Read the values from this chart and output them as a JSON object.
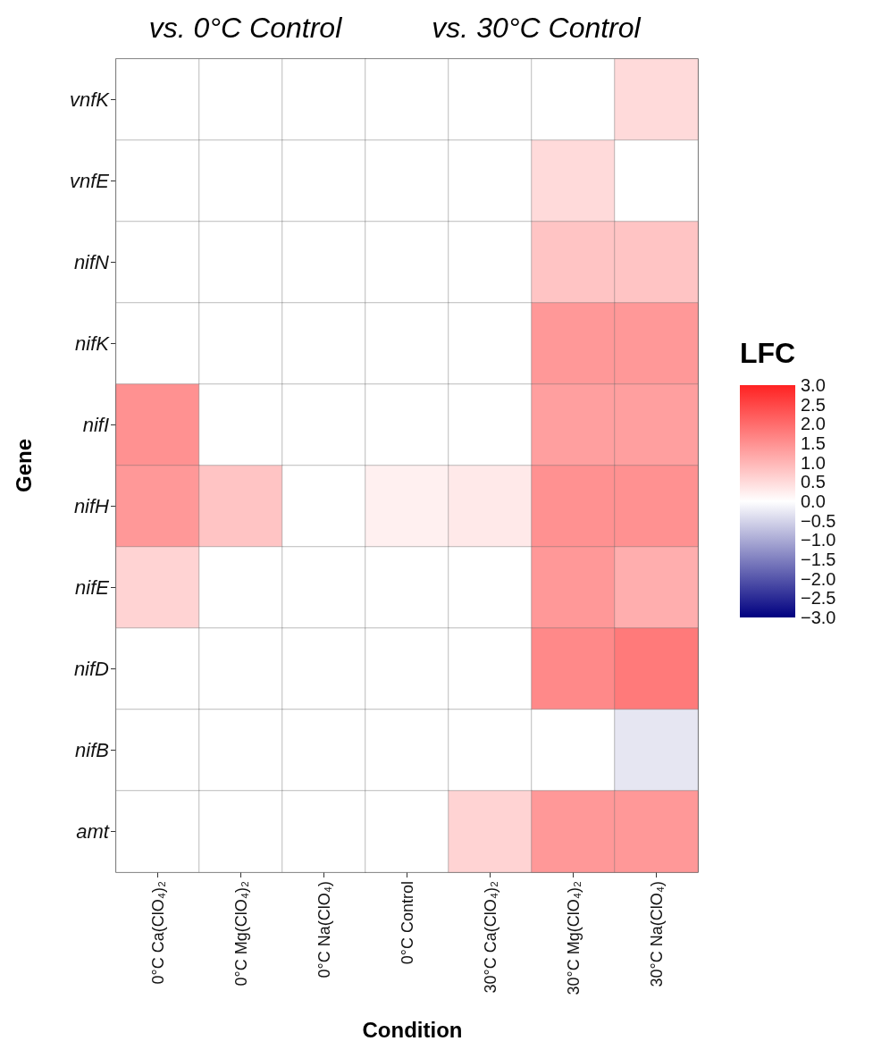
{
  "chart_data": {
    "type": "heatmap",
    "xlabel": "Condition",
    "ylabel": "Gene",
    "clabel": "LFC",
    "clim": [
      -3,
      3
    ],
    "annotations": [
      "vs. 0°C Control",
      "vs. 30°C Control"
    ],
    "cticks": [
      {
        "value": 3,
        "label": "3.0"
      },
      {
        "value": 2.5,
        "label": "2.5"
      },
      {
        "value": 2,
        "label": "2.0"
      },
      {
        "value": 1.5,
        "label": "1.5"
      },
      {
        "value": 1,
        "label": "1.0"
      },
      {
        "value": 0.5,
        "label": "0.5"
      },
      {
        "value": 0,
        "label": "0.0"
      },
      {
        "value": -0.5,
        "label": "−0.5"
      },
      {
        "value": -1,
        "label": "−1.0"
      },
      {
        "value": -1.5,
        "label": "−1.5"
      },
      {
        "value": -2,
        "label": "−2.0"
      },
      {
        "value": -2.5,
        "label": "−2.5"
      },
      {
        "value": -3,
        "label": "−3.0"
      }
    ],
    "categories": [
      "0°C Ca(ClO₄)₂",
      "0°C Mg(ClO₄)₂",
      "0°C Na(ClO₄)",
      "0°C Control",
      "30°C Ca(ClO₄)₂",
      "30°C Mg(ClO₄)₂",
      "30°C Na(ClO₄)"
    ],
    "y_categories": [
      "vnfK",
      "vnfE",
      "nifN",
      "nifK",
      "nifI",
      "nifH",
      "nifE",
      "nifD",
      "nifB",
      "amt"
    ],
    "cells": [
      [
        0,
        0,
        0,
        0,
        0,
        0,
        0.5
      ],
      [
        0,
        0,
        0,
        0,
        0,
        0.5,
        0
      ],
      [
        0,
        0,
        0,
        0,
        0,
        0.8,
        0.8
      ],
      [
        0,
        0,
        0,
        0,
        0,
        1.4,
        1.4
      ],
      [
        1.5,
        0,
        0,
        0,
        0,
        1.3,
        1.3
      ],
      [
        1.4,
        0.8,
        0,
        0.2,
        0.3,
        1.5,
        1.5
      ],
      [
        0.6,
        0,
        0,
        0,
        0,
        1.4,
        1.1
      ],
      [
        0,
        0,
        0,
        0,
        0,
        1.6,
        1.8
      ],
      [
        0,
        0,
        0,
        0,
        0,
        0,
        -0.3
      ],
      [
        0,
        0,
        0,
        0,
        0.6,
        1.4,
        1.4
      ]
    ]
  }
}
